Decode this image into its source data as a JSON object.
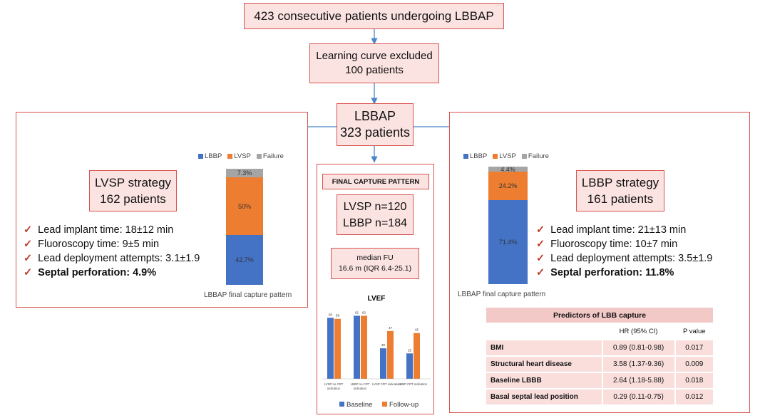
{
  "top_box": "423 consecutive patients undergoing LBBAP",
  "excluded_box": {
    "line1": "Learning curve excluded",
    "line2": "100 patients"
  },
  "lbbap_box": {
    "line1": "LBBAP",
    "line2": "323 patients"
  },
  "left_panel": {
    "strategy_line1": "LVSP strategy",
    "strategy_line2": "162 patients",
    "bullets": [
      "Lead implant time: 18±12 min",
      "Fluoroscopy time: 9±5 min",
      "Lead deployment attempts: 3.1±1.9",
      "Septal perforation: 4.9%"
    ],
    "legend": [
      "LBBP",
      "LVSP",
      "Failure"
    ],
    "bar_labels": {
      "lbbp": "42.7%",
      "lvsp": "50%",
      "failure": "7.3%"
    },
    "bar_values": {
      "lbbp": 42.7,
      "lvsp": 50,
      "failure": 7.3
    },
    "caption": "LBBAP final capture pattern"
  },
  "right_panel": {
    "strategy_line1": "LBBP strategy",
    "strategy_line2": "161 patients",
    "bullets": [
      "Lead implant time: 21±13 min",
      "Fluoroscopy time: 10±7 min",
      "Lead deployment attempts: 3.5±1.9",
      "Septal perforation: 11.8%"
    ],
    "legend": [
      "LBBP",
      "LVSP",
      "Failure"
    ],
    "bar_labels": {
      "lbbp": "71.4%",
      "lvsp": "24.2%",
      "failure": "4.4%"
    },
    "bar_values": {
      "lbbp": 71.4,
      "lvsp": 24.2,
      "failure": 4.4
    },
    "caption": "LBBAP final capture pattern"
  },
  "center_panel": {
    "final_capture_title": "FINAL CAPTURE PATTERN",
    "lvsp_n": "LVSP n=120",
    "lbbp_n": "LBBP n=184",
    "median_fu_line1": "median FU",
    "median_fu_line2": "16.6 m (IQR 6.4-25.1)"
  },
  "predictors": {
    "title": "Predictors of LBB capture",
    "col_hr": "HR (95% CI)",
    "col_p": "P value",
    "rows": [
      {
        "label": "BMI",
        "hr": "0.89 (0.81-0.98)",
        "p": "0.017"
      },
      {
        "label": "Structural heart disease",
        "hr": "3.58 (1.37-9.36)",
        "p": "0.009"
      },
      {
        "label": "Baseline LBBB",
        "hr": "2.64 (1.18-5.88)",
        "p": "0.018"
      },
      {
        "label": "Basal septal lead position",
        "hr": "0.29 (0.11-0.75)",
        "p": "0.012"
      }
    ]
  },
  "colors": {
    "lbbp": "#4472c4",
    "lvsp": "#ed7d31",
    "failure": "#a5a5a5",
    "border": "#d9534f",
    "fill": "#fbe3e1",
    "arrow": "#4a86c8"
  },
  "chart_data": {
    "type": "bar",
    "title": "LVEF",
    "categories": [
      "LVSP no CRT indication",
      "LBBP no CRT indication",
      "LVSP CRT indication",
      "LBBP CRT indication"
    ],
    "series": [
      {
        "name": "Baseline",
        "values": [
          60,
          62,
          30,
          25
        ]
      },
      {
        "name": "Follow-up",
        "values": [
          59,
          62,
          47,
          45
        ]
      }
    ],
    "ylim": [
      0,
      70
    ],
    "legend": [
      "Baseline",
      "Follow-up"
    ]
  }
}
